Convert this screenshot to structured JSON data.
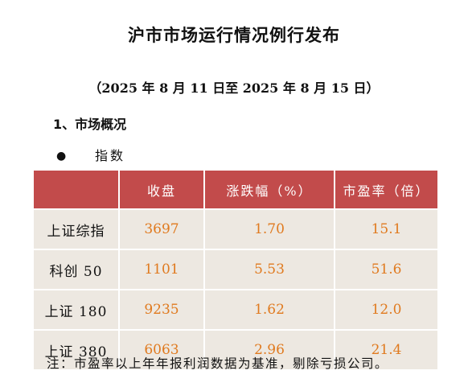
{
  "title": "沪市市场运行情况例行发布",
  "date_range": "（2025 年 8 月 11 日至 2025 年 8 月 15 日）",
  "section_heading": "1、市场概况",
  "bullet_symbol": "●",
  "subheading": "指数",
  "table": {
    "headers": [
      "",
      "收盘",
      "涨跌幅（%）",
      "市盈率（倍）"
    ],
    "rows": [
      {
        "name": "上证综指",
        "close": "3697",
        "change": "1.70",
        "pe": "15.1"
      },
      {
        "name": "科创 50",
        "close": "1101",
        "change": "5.53",
        "pe": "51.6"
      },
      {
        "name": "上证 180",
        "close": "9235",
        "change": "1.62",
        "pe": "12.0"
      },
      {
        "name": "上证 380",
        "close": "6063",
        "change": "2.96",
        "pe": "21.4"
      }
    ]
  },
  "note": "注：市盈率以上年年报利润数据为基准，剔除亏损公司。",
  "colors": {
    "header_bg": "#c24b4b",
    "row_bg": "#ede8e1",
    "value_text": "#e07a1f"
  }
}
